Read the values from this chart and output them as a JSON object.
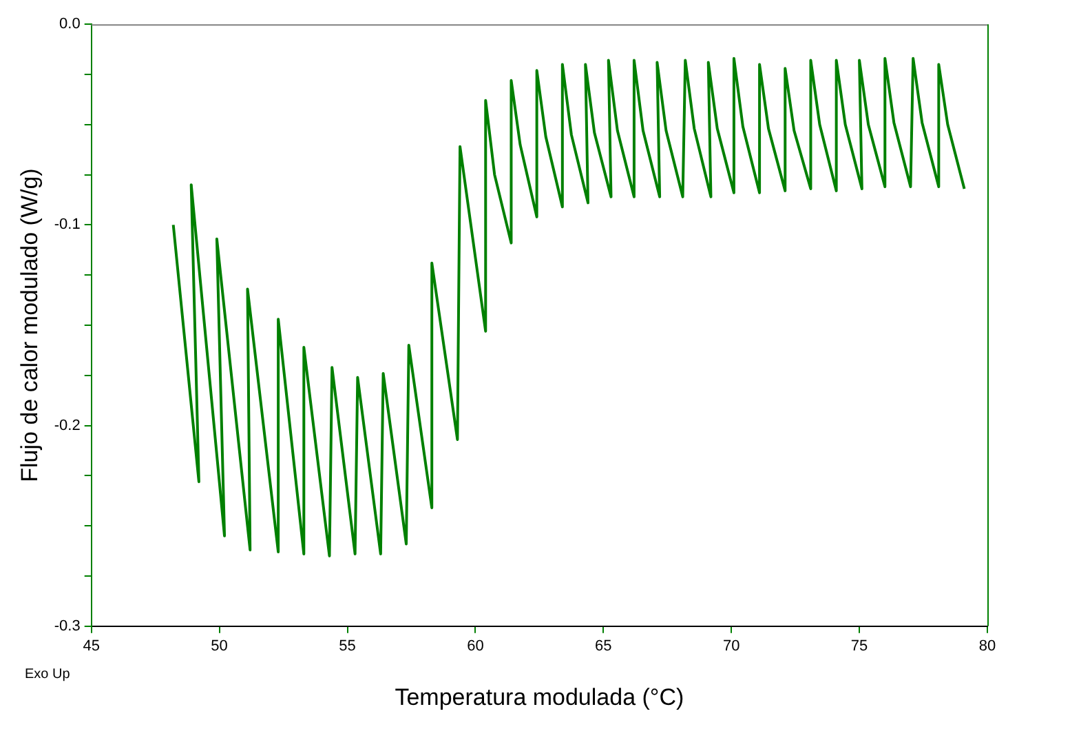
{
  "chart_data": {
    "type": "line",
    "xlabel": "Temperatura modulada (°C)",
    "ylabel": "Flujo de calor modulado (W/g)",
    "annotations": [
      "Exo Up"
    ],
    "xlim": [
      45,
      80
    ],
    "xticks": [
      45,
      50,
      55,
      60,
      65,
      70,
      75,
      80
    ],
    "ylim": [
      -0.3,
      0
    ],
    "yticks": [
      {
        "value": -0.3,
        "label": "-0.3"
      },
      {
        "value": -0.275,
        "label": null
      },
      {
        "value": -0.25,
        "label": null
      },
      {
        "value": -0.225,
        "label": null
      },
      {
        "value": -0.2,
        "label": "-0.2"
      },
      {
        "value": -0.175,
        "label": null
      },
      {
        "value": -0.15,
        "label": null
      },
      {
        "value": -0.125,
        "label": null
      },
      {
        "value": -0.1,
        "label": "-0.1"
      },
      {
        "value": -0.075,
        "label": null
      },
      {
        "value": -0.05,
        "label": null
      },
      {
        "value": -0.025,
        "label": null
      },
      {
        "value": 0,
        "label": "0.0"
      }
    ],
    "grid": false,
    "legend": false,
    "marker": "none",
    "line_style": "solid",
    "series": [
      {
        "color": "#008000",
        "x": [
          48.2,
          49.2,
          48.9,
          50.2,
          49.9,
          51.2,
          51.1,
          52.3,
          52.3,
          53.3,
          53.3,
          54.3,
          54.4,
          55.3,
          55.4,
          56.3,
          56.4,
          57.3,
          57.4,
          58.3,
          58.3,
          59.3,
          59.4,
          60.4,
          60.4,
          60.75,
          61.4,
          61.4,
          61.75,
          62.4,
          62.4,
          62.75,
          63.4,
          63.4,
          63.75,
          64.4,
          64.3,
          64.65,
          65.3,
          65.2,
          65.55,
          66.2,
          66.2,
          66.55,
          67.2,
          67.1,
          67.45,
          68.1,
          68.2,
          68.55,
          69.2,
          69.1,
          69.45,
          70.1,
          70.1,
          70.45,
          71.1,
          71.1,
          71.45,
          72.1,
          72.1,
          72.45,
          73.1,
          73.1,
          73.45,
          74.1,
          74.1,
          74.45,
          75.1,
          75.0,
          75.35,
          76.0,
          76.0,
          76.35,
          77.0,
          77.1,
          77.45,
          78.1,
          78.1,
          78.45,
          79.1
        ],
        "values": [
          -0.1,
          -0.228,
          -0.08,
          -0.255,
          -0.107,
          -0.262,
          -0.132,
          -0.263,
          -0.147,
          -0.264,
          -0.161,
          -0.265,
          -0.171,
          -0.264,
          -0.176,
          -0.264,
          -0.174,
          -0.259,
          -0.16,
          -0.241,
          -0.119,
          -0.207,
          -0.061,
          -0.153,
          -0.038,
          -0.075,
          -0.109,
          -0.028,
          -0.06,
          -0.096,
          -0.023,
          -0.056,
          -0.091,
          -0.02,
          -0.055,
          -0.089,
          -0.02,
          -0.054,
          -0.086,
          -0.018,
          -0.053,
          -0.086,
          -0.018,
          -0.053,
          -0.086,
          -0.019,
          -0.053,
          -0.086,
          -0.018,
          -0.052,
          -0.086,
          -0.019,
          -0.052,
          -0.084,
          -0.017,
          -0.051,
          -0.084,
          -0.02,
          -0.052,
          -0.083,
          -0.022,
          -0.053,
          -0.082,
          -0.018,
          -0.05,
          -0.083,
          -0.018,
          -0.05,
          -0.082,
          -0.018,
          -0.05,
          -0.081,
          -0.017,
          -0.049,
          -0.081,
          -0.017,
          -0.049,
          -0.081,
          -0.02,
          -0.05,
          -0.082
        ]
      }
    ]
  }
}
